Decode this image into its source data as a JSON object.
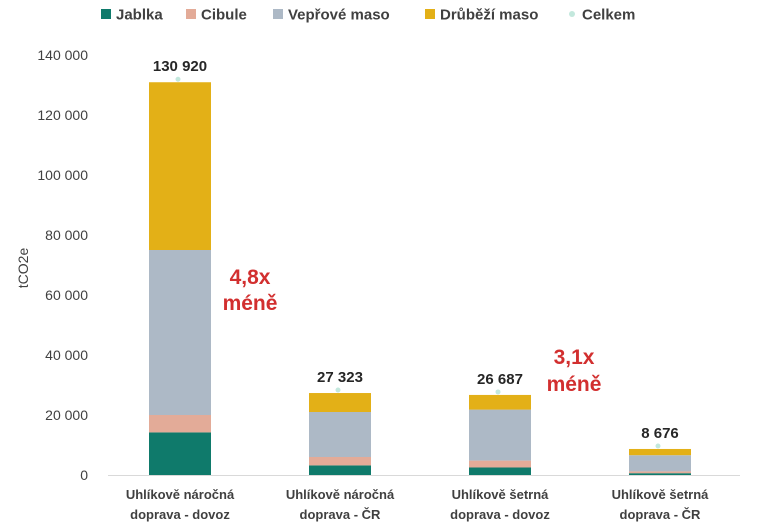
{
  "chart_data": {
    "type": "bar",
    "stacked": true,
    "ylabel": "tCO2e",
    "ylim": [
      0,
      140000
    ],
    "yticks": [
      0,
      20000,
      40000,
      60000,
      80000,
      100000,
      120000,
      140000
    ],
    "ytick_labels": [
      "0",
      "20 000",
      "40 000",
      "60 000",
      "80 000",
      "100 000",
      "120 000",
      "140 000"
    ],
    "grid": false,
    "legend_position": "top",
    "categories": [
      [
        "Uhlíkově náročná",
        "doprava - dovoz"
      ],
      [
        "Uhlíkově náročná",
        "doprava - ČR"
      ],
      [
        "Uhlíkově šetrná",
        "doprava - dovoz"
      ],
      [
        "Uhlíkově šetrná",
        "doprava - ČR"
      ]
    ],
    "series": [
      {
        "name": "Jablka",
        "color": "#0f7a6b",
        "values": [
          14200,
          3200,
          2500,
          600
        ]
      },
      {
        "name": "Cibule",
        "color": "#e3ab98",
        "values": [
          5800,
          2800,
          2300,
          600
        ]
      },
      {
        "name": "Vepřové maso",
        "color": "#adb9c6",
        "values": [
          55000,
          15000,
          17000,
          5400
        ]
      },
      {
        "name": "Drůběží maso",
        "color": "#e3b017",
        "values": [
          55920,
          6323,
          4887,
          2076
        ]
      }
    ],
    "total_series": {
      "name": "Celkem",
      "color": "#c3e8dd",
      "values": [
        130920,
        27323,
        26687,
        8676
      ]
    },
    "total_labels": [
      "130 920",
      "27 323",
      "26 687",
      "8 676"
    ],
    "annotations": [
      {
        "lines": [
          "4,8x",
          "méně"
        ],
        "between": [
          0,
          1
        ]
      },
      {
        "lines": [
          "3,1x",
          "méně"
        ],
        "between": [
          2,
          3
        ]
      }
    ]
  }
}
